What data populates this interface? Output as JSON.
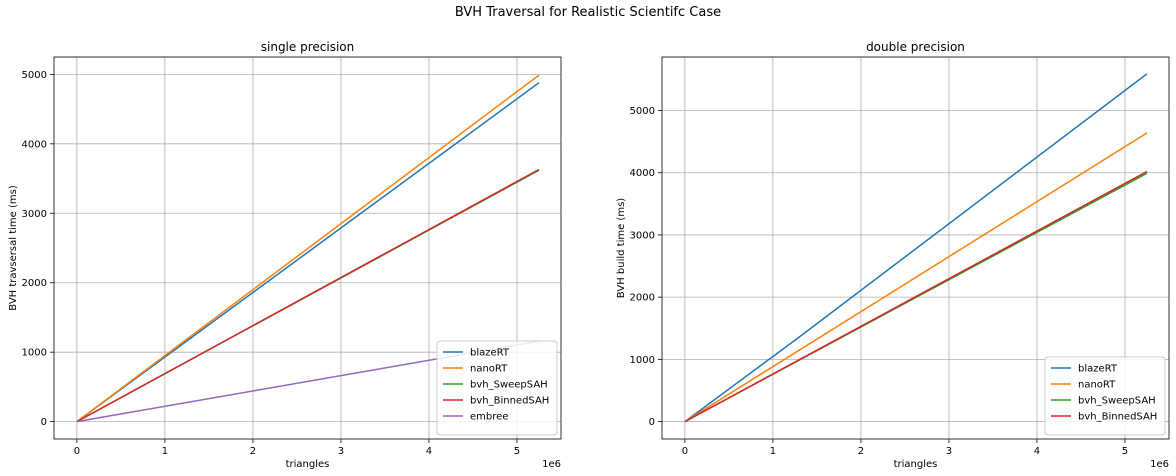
{
  "figure_title": "BVH Traversal for Realistic Scientifc Case",
  "colors": {
    "blazeRT": "#1f77b4",
    "nanoRT": "#ff7f0e",
    "bvh_SweepSAH": "#2ca02c",
    "bvh_BinnedSAH": "#d62728",
    "embree": "#9467bd"
  },
  "chart_data": [
    {
      "type": "line",
      "title": "single precision",
      "xlabel": "triangles",
      "ylabel": "BVH travsersal time (ms)",
      "x_offset_label": "1e6",
      "xlim": [
        -0.26,
        5.5
      ],
      "ylim": [
        -250,
        5250
      ],
      "xticks": [
        0,
        1,
        2,
        3,
        4,
        5
      ],
      "yticks": [
        0,
        1000,
        2000,
        3000,
        4000,
        5000
      ],
      "grid": true,
      "legend_position": "lower-right",
      "series": [
        {
          "name": "blazeRT",
          "x": [
            0,
            5.25
          ],
          "y": [
            0,
            4880
          ]
        },
        {
          "name": "nanoRT",
          "x": [
            0,
            5.25
          ],
          "y": [
            0,
            4990
          ]
        },
        {
          "name": "bvh_SweepSAH",
          "x": [
            0,
            5.25
          ],
          "y": [
            0,
            3620
          ]
        },
        {
          "name": "bvh_BinnedSAH",
          "x": [
            0,
            5.25
          ],
          "y": [
            0,
            3630
          ]
        },
        {
          "name": "embree",
          "x": [
            0,
            5.25
          ],
          "y": [
            0,
            1160
          ]
        }
      ]
    },
    {
      "type": "line",
      "title": "double precision",
      "xlabel": "triangles",
      "ylabel": "BVH build time (ms)",
      "x_offset_label": "1e6",
      "xlim": [
        -0.26,
        5.5
      ],
      "ylim": [
        -280,
        5860
      ],
      "xticks": [
        0,
        1,
        2,
        3,
        4,
        5
      ],
      "yticks": [
        0,
        1000,
        2000,
        3000,
        4000,
        5000
      ],
      "grid": true,
      "legend_position": "lower-right",
      "series": [
        {
          "name": "blazeRT",
          "x": [
            0,
            1.3,
            5.25
          ],
          "y": [
            0,
            1360,
            5590
          ]
        },
        {
          "name": "nanoRT",
          "x": [
            0,
            5.25
          ],
          "y": [
            0,
            4640
          ]
        },
        {
          "name": "bvh_SweepSAH",
          "x": [
            0,
            5.25
          ],
          "y": [
            0,
            3990
          ]
        },
        {
          "name": "bvh_BinnedSAH",
          "x": [
            0,
            5.25
          ],
          "y": [
            0,
            4020
          ]
        }
      ]
    }
  ]
}
